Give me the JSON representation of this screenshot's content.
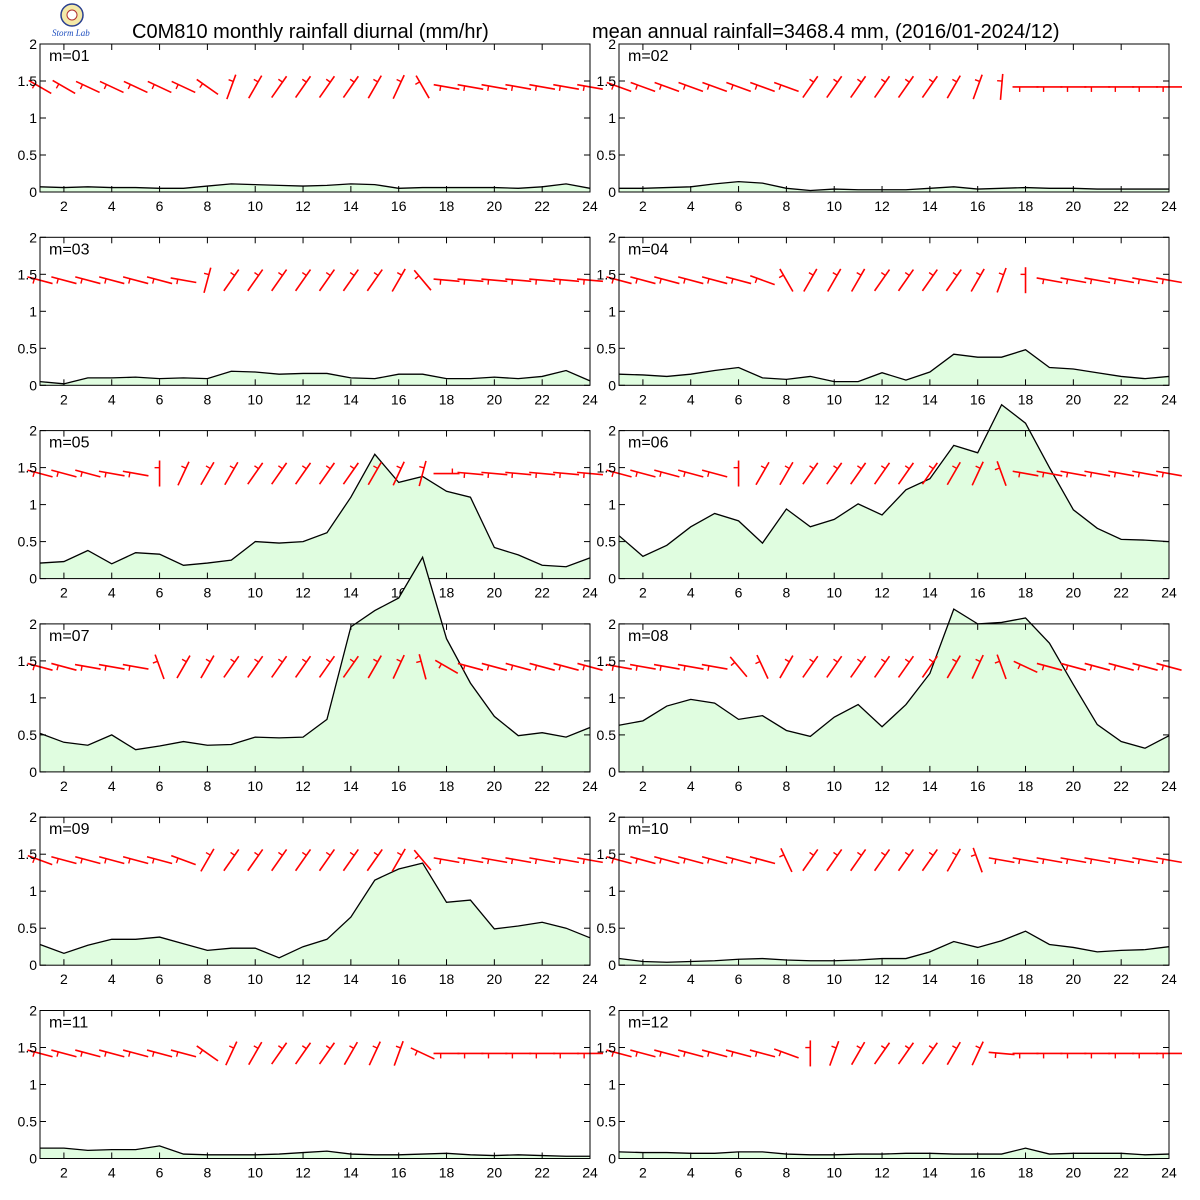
{
  "header": {
    "title_left": "C0M810 monthly rainfall diurnal (mm/hr)",
    "title_right": "mean annual rainfall=3468.4 mm, (2016/01-2024/12)",
    "logo_text": "Storm Lab"
  },
  "colors": {
    "fill": "#e0fde0",
    "line": "#000000",
    "wind": "#ff0000",
    "axes": "#000000"
  },
  "chart_data": {
    "type": "area",
    "x": [
      1,
      2,
      3,
      4,
      5,
      6,
      7,
      8,
      9,
      10,
      11,
      12,
      13,
      14,
      15,
      16,
      17,
      18,
      19,
      20,
      21,
      22,
      23,
      24
    ],
    "xticks": [
      2,
      4,
      6,
      8,
      10,
      12,
      14,
      16,
      18,
      20,
      22,
      24
    ],
    "yticks": [
      0,
      0.5,
      1,
      1.5,
      2
    ],
    "ylim": [
      0,
      2
    ],
    "xlim": [
      1,
      24
    ],
    "series": [
      {
        "name": "m=01",
        "values": [
          0.07,
          0.06,
          0.07,
          0.06,
          0.06,
          0.05,
          0.05,
          0.08,
          0.11,
          0.1,
          0.09,
          0.08,
          0.09,
          0.11,
          0.1,
          0.05,
          0.06,
          0.06,
          0.06,
          0.06,
          0.05,
          0.07,
          0.11,
          0.05
        ],
        "wind_angles": [
          150,
          150,
          155,
          155,
          155,
          155,
          155,
          145,
          70,
          60,
          55,
          55,
          55,
          55,
          60,
          65,
          120,
          170,
          170,
          170,
          170,
          170,
          170,
          170
        ]
      },
      {
        "name": "m=02",
        "values": [
          0.05,
          0.05,
          0.06,
          0.07,
          0.11,
          0.14,
          0.12,
          0.05,
          0.02,
          0.04,
          0.03,
          0.03,
          0.03,
          0.05,
          0.07,
          0.04,
          0.05,
          0.06,
          0.05,
          0.05,
          0.04,
          0.04,
          0.04,
          0.04
        ],
        "wind_angles": [
          160,
          160,
          160,
          160,
          160,
          160,
          160,
          160,
          55,
          55,
          55,
          55,
          55,
          55,
          60,
          70,
          85,
          180,
          180,
          180,
          180,
          180,
          180,
          180
        ]
      },
      {
        "name": "m=03",
        "values": [
          0.05,
          0.02,
          0.1,
          0.1,
          0.11,
          0.09,
          0.1,
          0.09,
          0.19,
          0.18,
          0.15,
          0.16,
          0.16,
          0.1,
          0.09,
          0.15,
          0.15,
          0.09,
          0.09,
          0.11,
          0.09,
          0.12,
          0.2,
          0.06
        ],
        "wind_angles": [
          165,
          165,
          165,
          165,
          165,
          165,
          170,
          75,
          55,
          55,
          55,
          55,
          55,
          55,
          55,
          60,
          130,
          175,
          175,
          175,
          175,
          175,
          175,
          175
        ]
      },
      {
        "name": "m=04",
        "values": [
          0.15,
          0.14,
          0.12,
          0.15,
          0.2,
          0.24,
          0.1,
          0.08,
          0.12,
          0.05,
          0.05,
          0.17,
          0.07,
          0.18,
          0.42,
          0.38,
          0.38,
          0.48,
          0.24,
          0.22,
          0.17,
          0.12,
          0.09,
          0.12
        ],
        "wind_angles": [
          165,
          165,
          165,
          165,
          165,
          165,
          160,
          120,
          60,
          60,
          60,
          55,
          55,
          55,
          55,
          60,
          70,
          90,
          170,
          170,
          170,
          170,
          170,
          170
        ]
      },
      {
        "name": "m=05",
        "values": [
          0.21,
          0.23,
          0.38,
          0.2,
          0.35,
          0.33,
          0.18,
          0.21,
          0.25,
          0.5,
          0.48,
          0.5,
          0.62,
          1.1,
          1.68,
          1.3,
          1.38,
          1.18,
          1.1,
          0.42,
          0.32,
          0.18,
          0.16,
          0.28
        ],
        "wind_angles": [
          165,
          165,
          165,
          170,
          170,
          90,
          65,
          60,
          60,
          55,
          55,
          55,
          55,
          55,
          60,
          65,
          75,
          0,
          175,
          175,
          175,
          175,
          175,
          175
        ]
      },
      {
        "name": "m=06",
        "values": [
          0.58,
          0.3,
          0.45,
          0.7,
          0.88,
          0.78,
          0.48,
          0.94,
          0.7,
          0.8,
          1.01,
          0.86,
          1.2,
          1.35,
          1.8,
          1.7,
          2.35,
          2.1,
          1.5,
          0.93,
          0.68,
          0.53,
          0.52,
          0.5
        ],
        "wind_angles": [
          165,
          165,
          165,
          165,
          165,
          90,
          60,
          60,
          55,
          55,
          55,
          55,
          55,
          55,
          60,
          65,
          110,
          170,
          170,
          170,
          170,
          170,
          170,
          170
        ]
      },
      {
        "name": "m=07",
        "values": [
          0.52,
          0.4,
          0.36,
          0.5,
          0.3,
          0.35,
          0.41,
          0.36,
          0.37,
          0.47,
          0.46,
          0.47,
          0.71,
          1.96,
          2.18,
          2.35,
          2.9,
          1.8,
          1.2,
          0.75,
          0.49,
          0.53,
          0.47,
          0.6
        ],
        "wind_angles": [
          165,
          165,
          170,
          170,
          170,
          110,
          60,
          60,
          55,
          55,
          55,
          55,
          55,
          55,
          60,
          65,
          105,
          150,
          165,
          165,
          165,
          165,
          165,
          165
        ]
      },
      {
        "name": "m=08",
        "values": [
          0.63,
          0.69,
          0.89,
          0.98,
          0.93,
          0.71,
          0.76,
          0.56,
          0.48,
          0.74,
          0.91,
          0.61,
          0.91,
          1.33,
          2.2,
          2.0,
          2.02,
          2.08,
          1.74,
          1.18,
          0.64,
          0.41,
          0.32,
          0.49
        ],
        "wind_angles": [
          170,
          170,
          170,
          170,
          170,
          130,
          115,
          60,
          55,
          55,
          55,
          55,
          55,
          55,
          60,
          65,
          110,
          155,
          165,
          165,
          165,
          165,
          165,
          165
        ]
      },
      {
        "name": "m=09",
        "values": [
          0.28,
          0.16,
          0.27,
          0.35,
          0.35,
          0.38,
          0.29,
          0.2,
          0.23,
          0.23,
          0.1,
          0.25,
          0.35,
          0.65,
          1.15,
          1.3,
          1.38,
          0.85,
          0.88,
          0.49,
          0.53,
          0.58,
          0.5,
          0.37
        ],
        "wind_angles": [
          160,
          165,
          165,
          165,
          165,
          165,
          160,
          60,
          55,
          55,
          55,
          55,
          55,
          55,
          55,
          60,
          130,
          170,
          170,
          170,
          170,
          170,
          170,
          170
        ]
      },
      {
        "name": "m=10",
        "values": [
          0.09,
          0.05,
          0.04,
          0.05,
          0.06,
          0.08,
          0.09,
          0.07,
          0.06,
          0.06,
          0.07,
          0.09,
          0.09,
          0.18,
          0.32,
          0.24,
          0.33,
          0.46,
          0.28,
          0.24,
          0.18,
          0.2,
          0.21,
          0.25
        ],
        "wind_angles": [
          165,
          165,
          165,
          165,
          165,
          165,
          165,
          115,
          55,
          55,
          55,
          55,
          55,
          55,
          60,
          110,
          170,
          170,
          170,
          170,
          170,
          170,
          170,
          170
        ]
      },
      {
        "name": "m=11",
        "values": [
          0.14,
          0.14,
          0.11,
          0.12,
          0.12,
          0.17,
          0.06,
          0.05,
          0.05,
          0.05,
          0.06,
          0.08,
          0.1,
          0.06,
          0.05,
          0.05,
          0.06,
          0.07,
          0.05,
          0.04,
          0.05,
          0.04,
          0.03,
          0.03
        ],
        "wind_angles": [
          165,
          165,
          165,
          165,
          165,
          165,
          165,
          145,
          65,
          60,
          55,
          55,
          55,
          60,
          65,
          70,
          155,
          180,
          180,
          180,
          180,
          180,
          180,
          180
        ]
      },
      {
        "name": "m=12",
        "values": [
          0.09,
          0.08,
          0.08,
          0.07,
          0.07,
          0.09,
          0.09,
          0.06,
          0.05,
          0.05,
          0.06,
          0.06,
          0.07,
          0.07,
          0.06,
          0.06,
          0.06,
          0.14,
          0.06,
          0.07,
          0.07,
          0.07,
          0.05,
          0.06
        ],
        "wind_angles": [
          165,
          165,
          165,
          165,
          165,
          165,
          165,
          160,
          90,
          70,
          60,
          55,
          55,
          55,
          60,
          65,
          175,
          180,
          180,
          180,
          180,
          180,
          180,
          180
        ]
      }
    ]
  }
}
